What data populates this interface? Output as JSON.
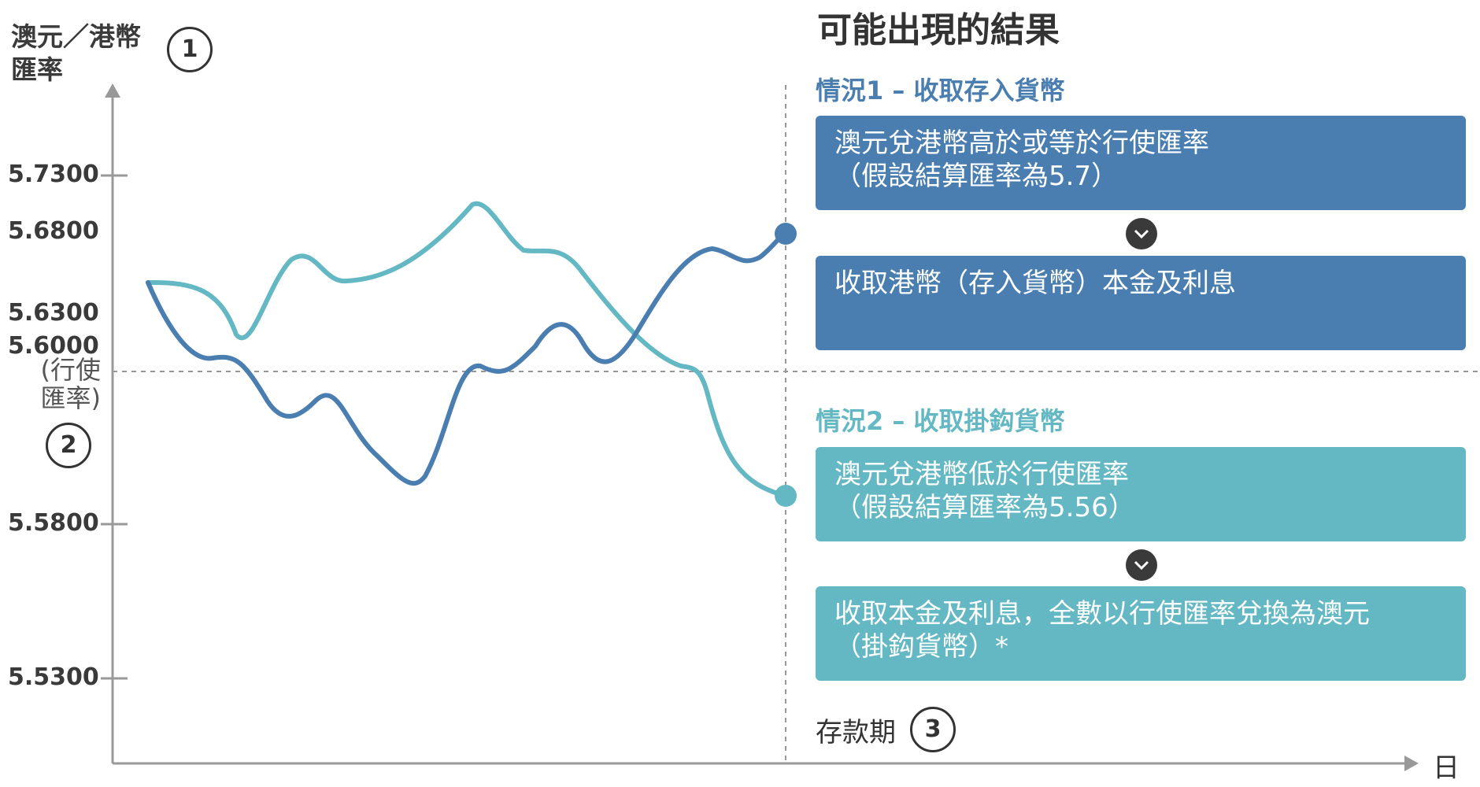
{
  "y_axis": {
    "title_line1": "澳元／港幣",
    "title_line2": "匯率",
    "marker": "1",
    "ticks": [
      "5.7300",
      "5.6800",
      "5.6300",
      "5.6000",
      "5.5800",
      "5.5300"
    ],
    "strike_note_line1": "(行使",
    "strike_note_line2": "匯率)",
    "strike_marker": "2"
  },
  "x_axis": {
    "unit": "日",
    "deposit_label": "存款期",
    "deposit_marker": "3"
  },
  "outcomes": {
    "title": "可能出現的結果",
    "scenario1": {
      "title": "情況1 – 收取存入貨幣",
      "condition_line1": "澳元兌港幣高於或等於行使匯率",
      "condition_line2": "（假設結算匯率為5.7）",
      "result_line1": "收取港幣（存入貨幣）本金及利息",
      "color": "#4a7eb0"
    },
    "scenario2": {
      "title": "情況2 – 收取掛鈎貨幣",
      "condition_line1": "澳元兌港幣低於行使匯率",
      "condition_line2": "（假設結算匯率為5.56）",
      "result_line1": "收取本金及利息，全數以行使匯率兌換為澳元",
      "result_line2": "（掛鈎貨幣）*",
      "color": "#63b8c3"
    }
  },
  "chevron_icon": "chevron-down-icon"
}
